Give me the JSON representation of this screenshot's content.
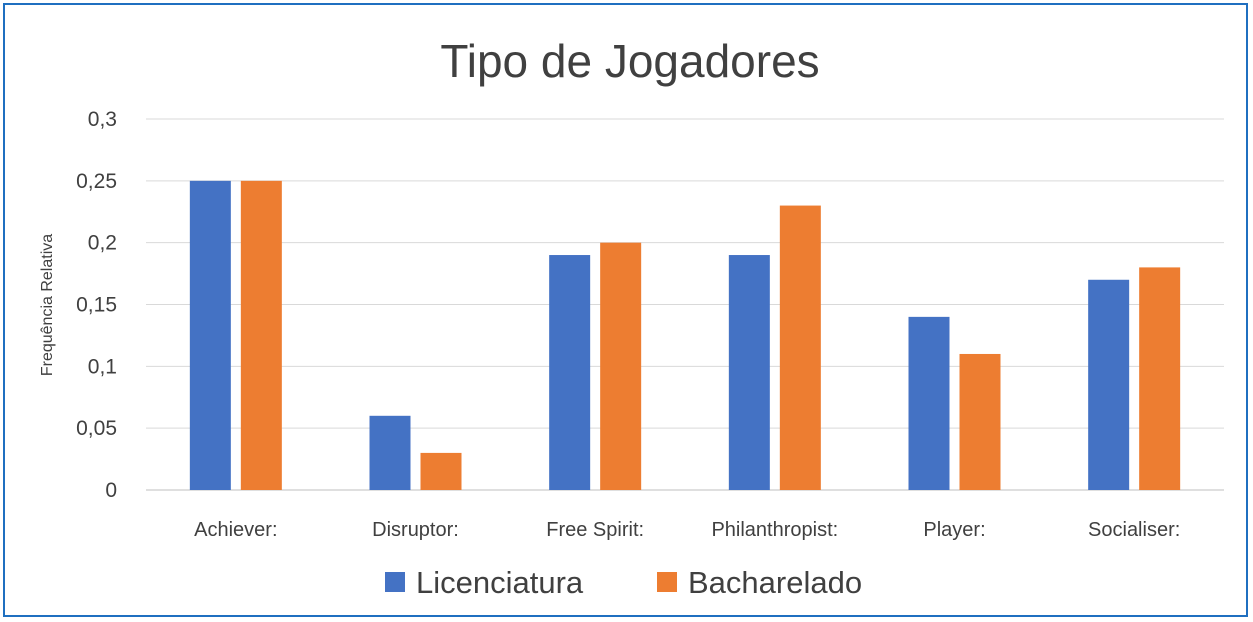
{
  "chart_data": {
    "type": "bar",
    "title": "Tipo de Jogadores",
    "xlabel": "",
    "ylabel": "Frequência Relativa",
    "categories": [
      "Achiever:",
      "Disruptor:",
      "Free Spirit:",
      "Philanthropist:",
      "Player:",
      "Socialiser:"
    ],
    "series": [
      {
        "name": "Licenciatura",
        "color": "#4472c4",
        "values": [
          0.25,
          0.06,
          0.19,
          0.19,
          0.14,
          0.17
        ]
      },
      {
        "name": "Bacharelado",
        "color": "#ed7d31",
        "values": [
          0.25,
          0.03,
          0.2,
          0.23,
          0.11,
          0.18
        ]
      }
    ],
    "ylim": [
      0,
      0.3
    ],
    "yticks": [
      {
        "value": 0,
        "label": "0"
      },
      {
        "value": 0.05,
        "label": "0,05"
      },
      {
        "value": 0.1,
        "label": "0,1"
      },
      {
        "value": 0.15,
        "label": "0,15"
      },
      {
        "value": 0.2,
        "label": "0,2"
      },
      {
        "value": 0.25,
        "label": "0,25"
      },
      {
        "value": 0.3,
        "label": "0,3"
      }
    ],
    "grid": true,
    "legend": "bottom"
  }
}
